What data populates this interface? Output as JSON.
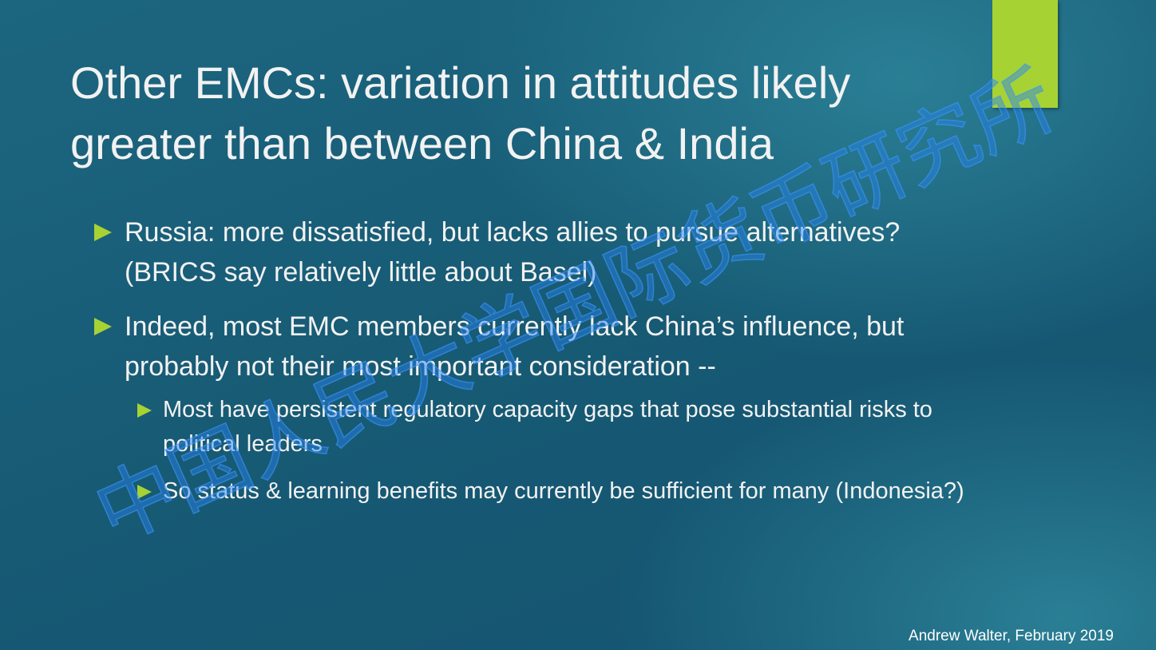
{
  "title": [
    "Other EMCs: variation in attitudes likely",
    "greater than between China & India"
  ],
  "bullets": [
    {
      "text": "Russia: more dissatisfied, but lacks allies to pursue alternatives? (BRICS say relatively little about Basel)",
      "sub": []
    },
    {
      "text": "Indeed, most EMC members currently lack China’s influence, but probably not their most important consideration --",
      "sub": [
        "Most have persistent regulatory capacity gaps that pose substantial risks to political leaders",
        "So status & learning benefits may currently be sufficient for many (Indonesia?)"
      ]
    }
  ],
  "footer": "Andrew Walter, February 2019",
  "watermark": "中国人民大学国际货币研究所"
}
